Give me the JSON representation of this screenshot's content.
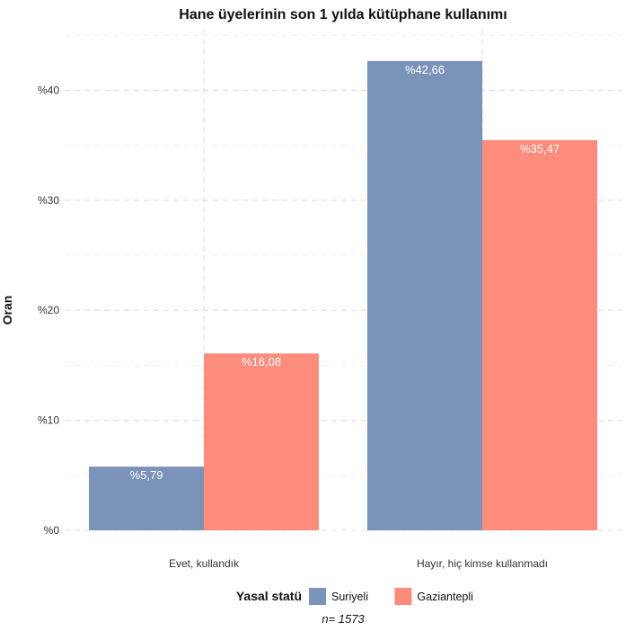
{
  "chart_data": {
    "type": "bar",
    "title": "Hane üyelerinin son 1 yılda kütüphane kullanımı",
    "xlabel": "",
    "ylabel": "Oran",
    "ylim": [
      0,
      45
    ],
    "grid": true,
    "categories": [
      "Evet, kullandık",
      "Hayır, hiç kimse kullanmadı"
    ],
    "yticks": [
      {
        "value": 0,
        "label": "%0"
      },
      {
        "value": 10,
        "label": "%10"
      },
      {
        "value": 20,
        "label": "%20"
      },
      {
        "value": 30,
        "label": "%30"
      },
      {
        "value": 40,
        "label": "%40"
      }
    ],
    "series": [
      {
        "name": "Suriyeli",
        "color": "#7b93b8",
        "values": [
          5.79,
          42.66
        ],
        "labels": [
          "%5,79",
          "%42,66"
        ]
      },
      {
        "name": "Gaziantepli",
        "color": "#fc8d7c",
        "values": [
          16.08,
          35.47
        ],
        "labels": [
          "%16,08",
          "%35,47"
        ]
      }
    ],
    "legend": {
      "title": "Yasal statü",
      "position": "bottom"
    },
    "caption": "n= 1573"
  }
}
